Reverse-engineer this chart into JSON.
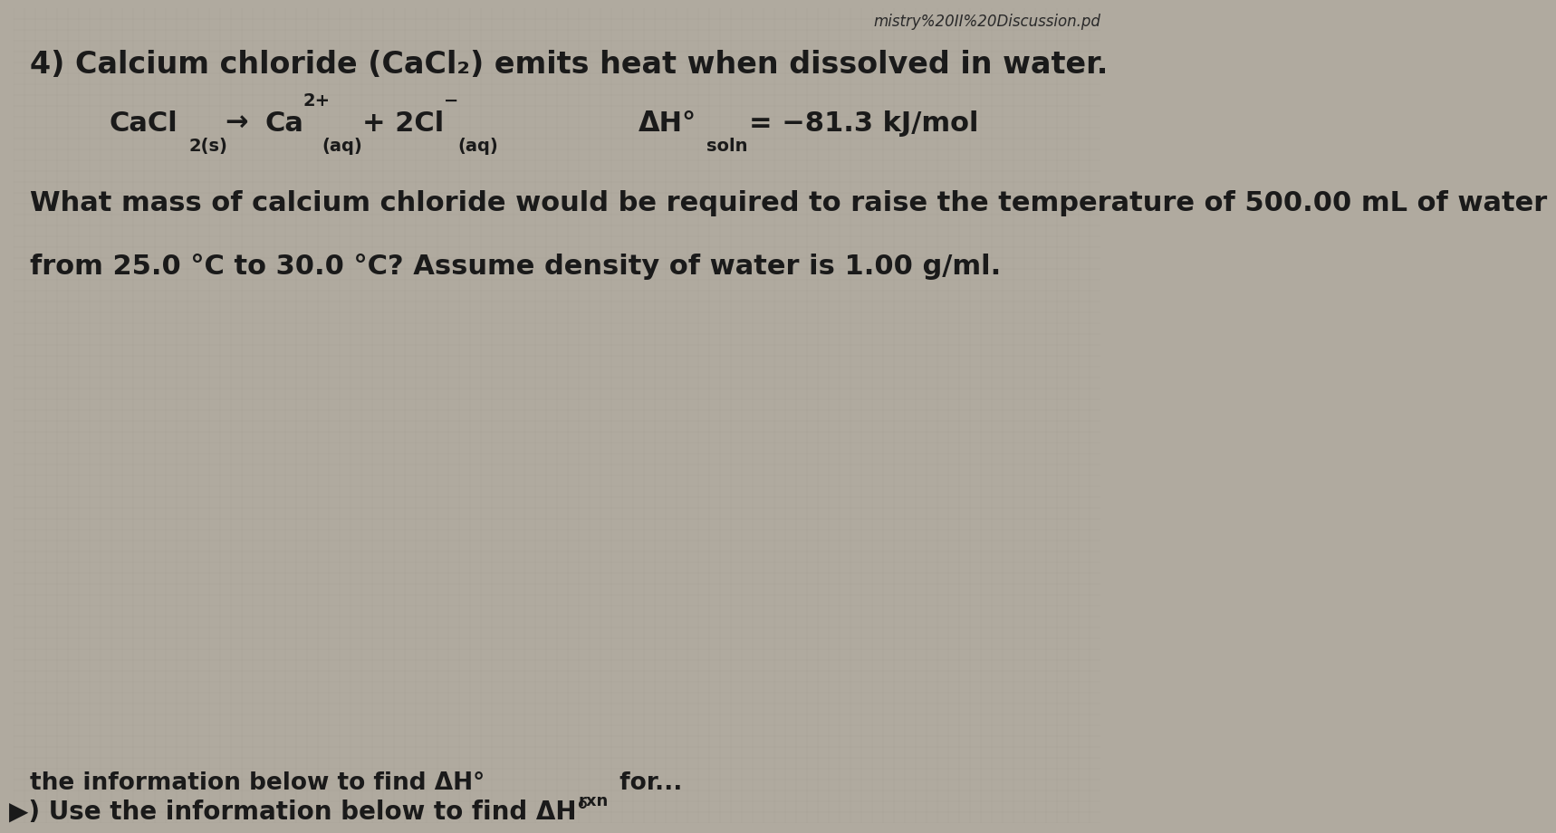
{
  "background_color": "#b0aa9f",
  "header_text": "mistry%20II%20Discussion.pd",
  "title_full": "4) Calcium chloride (CaCl₂) emits heat when dissolved in water.",
  "question_line1": "What mass of calcium chloride would be required to raise the temperature of 500.00 mL of water",
  "question_line2": "from 25.0 °C to 30.0 °C? Assume density of water is 1.00 g/ml.",
  "bottom_line1": "the information below to find ΔH°",
  "bottom_rxn": "rxn",
  "bottom_for": " for...",
  "bottom_prefix": "▶) Use ",
  "text_color": "#1a1a1a",
  "header_color": "#2a2a2a",
  "font_size_title": 24,
  "font_size_eq_main": 22,
  "font_size_eq_sub": 14,
  "font_size_body": 22,
  "font_size_header": 12,
  "font_size_bottom": 19
}
